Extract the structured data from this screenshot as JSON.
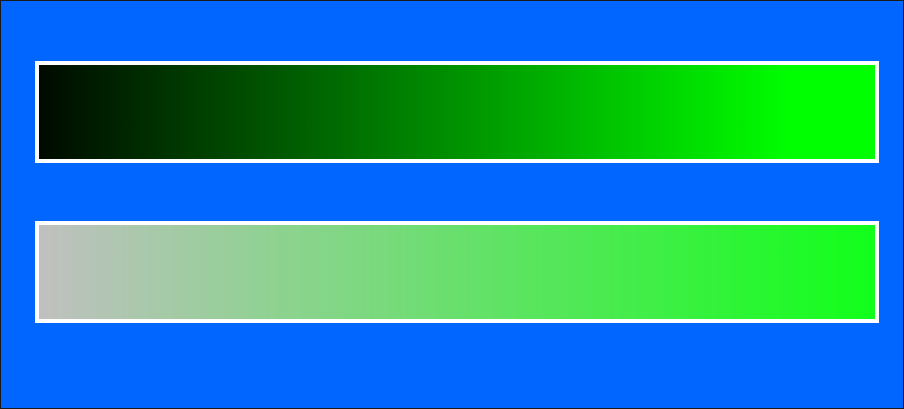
{
  "colors": {
    "background": "#0066ff",
    "frame": "#ffffff"
  },
  "gradients": [
    {
      "id": "top",
      "start": "#000a00",
      "end": "#00ff00",
      "end_reached_at_percent": 90
    },
    {
      "id": "bottom",
      "start": "#c0c0c0",
      "end": "#11ff1a",
      "end_reached_at_percent": 100
    }
  ]
}
